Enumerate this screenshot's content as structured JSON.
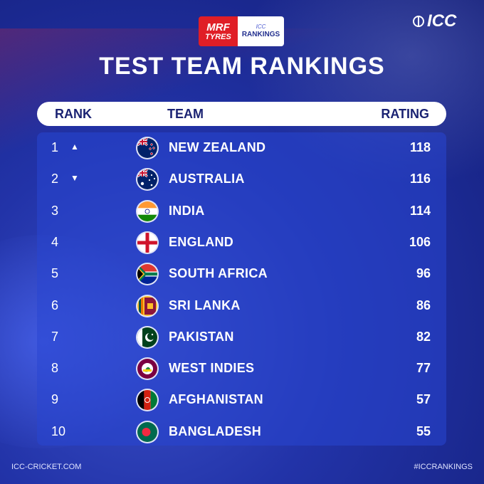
{
  "sponsor": {
    "mrf_line1": "MRF",
    "mrf_line2": "TYRES",
    "icc_small": "ICC",
    "rankings": "RANKINGS"
  },
  "brand": {
    "logo_text": "ICC"
  },
  "title": "TEST TEAM RANKINGS",
  "columns": {
    "rank": "RANK",
    "team": "TEAM",
    "rating": "RATING"
  },
  "rows": [
    {
      "rank": "1",
      "move": "▲",
      "team": "NEW ZEALAND",
      "rating": "118",
      "flag": "new-zealand"
    },
    {
      "rank": "2",
      "move": "▼",
      "team": "AUSTRALIA",
      "rating": "116",
      "flag": "australia"
    },
    {
      "rank": "3",
      "move": "",
      "team": "INDIA",
      "rating": "114",
      "flag": "india"
    },
    {
      "rank": "4",
      "move": "",
      "team": "ENGLAND",
      "rating": "106",
      "flag": "england"
    },
    {
      "rank": "5",
      "move": "",
      "team": "SOUTH AFRICA",
      "rating": "96",
      "flag": "south-africa"
    },
    {
      "rank": "6",
      "move": "",
      "team": "SRI LANKA",
      "rating": "86",
      "flag": "sri-lanka"
    },
    {
      "rank": "7",
      "move": "",
      "team": "PAKISTAN",
      "rating": "82",
      "flag": "pakistan"
    },
    {
      "rank": "8",
      "move": "",
      "team": "WEST INDIES",
      "rating": "77",
      "flag": "west-indies"
    },
    {
      "rank": "9",
      "move": "",
      "team": "AFGHANISTAN",
      "rating": "57",
      "flag": "afghanistan"
    },
    {
      "rank": "10",
      "move": "",
      "team": "BANGLADESH",
      "rating": "55",
      "flag": "bangladesh"
    }
  ],
  "footer": {
    "site": "ICC-CRICKET.COM",
    "hashtag": "#ICCRANKINGS"
  },
  "colors": {
    "background": "#2233a8",
    "header_text": "#1a2272",
    "mrf_red": "#e01e26"
  }
}
